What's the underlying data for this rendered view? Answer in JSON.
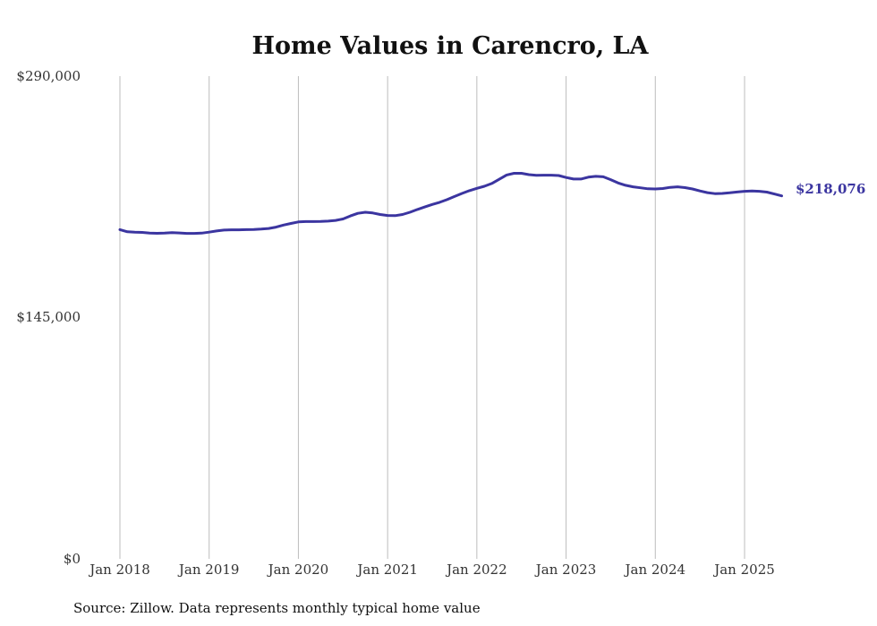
{
  "chart_data": {
    "type": "line",
    "title": "Home Values in Carencro, LA",
    "source": "Source: Zillow. Data represents monthly typical home value",
    "ylim": [
      0,
      290000
    ],
    "y_ticks": [
      {
        "value": 0,
        "label": "$0"
      },
      {
        "value": 145000,
        "label": "$145,000"
      },
      {
        "value": 290000,
        "label": "$290,000"
      }
    ],
    "x_ticks": [
      "Jan 2018",
      "Jan 2019",
      "Jan 2020",
      "Jan 2021",
      "Jan 2022",
      "Jan 2023",
      "Jan 2024",
      "Jan 2025"
    ],
    "grid": "vertical",
    "line_color": "#3b35a0",
    "end_label": "$218,076",
    "series": [
      {
        "x": [
          "2018-01",
          "2018-02",
          "2018-03",
          "2018-04",
          "2018-05",
          "2018-06",
          "2018-07",
          "2018-08",
          "2018-09",
          "2018-10",
          "2018-11",
          "2018-12",
          "2019-01",
          "2019-02",
          "2019-03",
          "2019-04",
          "2019-05",
          "2019-06",
          "2019-07",
          "2019-08",
          "2019-09",
          "2019-10",
          "2019-11",
          "2019-12",
          "2020-01",
          "2020-02",
          "2020-03",
          "2020-04",
          "2020-05",
          "2020-06",
          "2020-07",
          "2020-08",
          "2020-09",
          "2020-10",
          "2020-11",
          "2020-12",
          "2021-01",
          "2021-02",
          "2021-03",
          "2021-04",
          "2021-05",
          "2021-06",
          "2021-07",
          "2021-08",
          "2021-09",
          "2021-10",
          "2021-11",
          "2021-12",
          "2022-01",
          "2022-02",
          "2022-03",
          "2022-04",
          "2022-05",
          "2022-06",
          "2022-07",
          "2022-08",
          "2022-09",
          "2022-10",
          "2022-11",
          "2022-12",
          "2023-01",
          "2023-02",
          "2023-03",
          "2023-04",
          "2023-05",
          "2023-06",
          "2023-07",
          "2023-08",
          "2023-09",
          "2023-10",
          "2023-11",
          "2023-12",
          "2024-01",
          "2024-02",
          "2024-03",
          "2024-04",
          "2024-05",
          "2024-06",
          "2024-07",
          "2024-08",
          "2024-09",
          "2024-10",
          "2024-11",
          "2024-12",
          "2025-01",
          "2025-02",
          "2025-03",
          "2025-04",
          "2025-05",
          "2025-06"
        ],
        "values": [
          197800,
          196500,
          196200,
          196100,
          195700,
          195600,
          195700,
          196000,
          195800,
          195500,
          195500,
          195700,
          196300,
          197000,
          197500,
          197700,
          197700,
          197800,
          197900,
          198100,
          198500,
          199300,
          200500,
          201500,
          202400,
          202600,
          202600,
          202700,
          202900,
          203300,
          204200,
          206000,
          207600,
          208200,
          207800,
          206900,
          206300,
          206200,
          206900,
          208200,
          209900,
          211400,
          212900,
          214200,
          215800,
          217700,
          219500,
          221200,
          222600,
          223800,
          225500,
          228000,
          230600,
          231600,
          231600,
          230800,
          230400,
          230500,
          230500,
          230300,
          229100,
          228200,
          228200,
          229300,
          229800,
          229500,
          227800,
          225800,
          224400,
          223500,
          222900,
          222300,
          222200,
          222500,
          223200,
          223500,
          223000,
          222200,
          221000,
          220000,
          219400,
          219500,
          219900,
          220400,
          220800,
          221000,
          220800,
          220300,
          219200,
          218076
        ]
      }
    ]
  }
}
